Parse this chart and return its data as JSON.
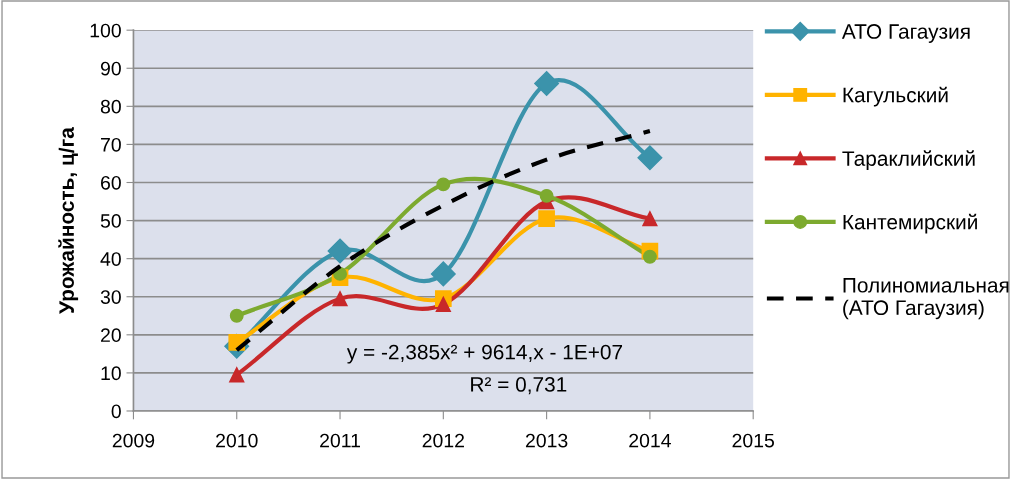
{
  "chart_data": {
    "type": "line",
    "ylabel": "Урожайность, ц/га",
    "x": [
      2010,
      2011,
      2012,
      2013,
      2014
    ],
    "xlim": [
      2009,
      2015
    ],
    "xticks": [
      2009,
      2010,
      2011,
      2012,
      2013,
      2014,
      2015
    ],
    "ylim": [
      0,
      100
    ],
    "yticks": [
      0,
      10,
      20,
      30,
      40,
      50,
      60,
      70,
      80,
      90,
      100
    ],
    "grid": "y",
    "legend": "right",
    "line_style": "solid",
    "series": [
      {
        "name": "АТО Гагаузия",
        "color": "#3b93ab",
        "marker": "diamond",
        "values": [
          17,
          42,
          36,
          86,
          66.5
        ]
      },
      {
        "name": "Кагульский",
        "color": "#ffb300",
        "marker": "square",
        "values": [
          18,
          35,
          29.5,
          50.5,
          42
        ]
      },
      {
        "name": "Тараклийский",
        "color": "#c8282a",
        "marker": "triangle",
        "values": [
          9.5,
          29.5,
          28,
          55,
          50.5
        ]
      },
      {
        "name": "Кантемирский",
        "color": "#7daa2f",
        "marker": "circle",
        "values": [
          25,
          36,
          59.5,
          56.5,
          40.5
        ]
      },
      {
        "name": "Полиномиальная (АТО Гагаузия)",
        "color": "#000000",
        "marker": "none",
        "line_style": "dashed",
        "values": [
          16,
          38,
          54,
          66,
          73.5
        ]
      }
    ],
    "annotations": [
      "y = -2,385x² + 9614,x - 1E+07",
      "R² = 0,731"
    ]
  }
}
